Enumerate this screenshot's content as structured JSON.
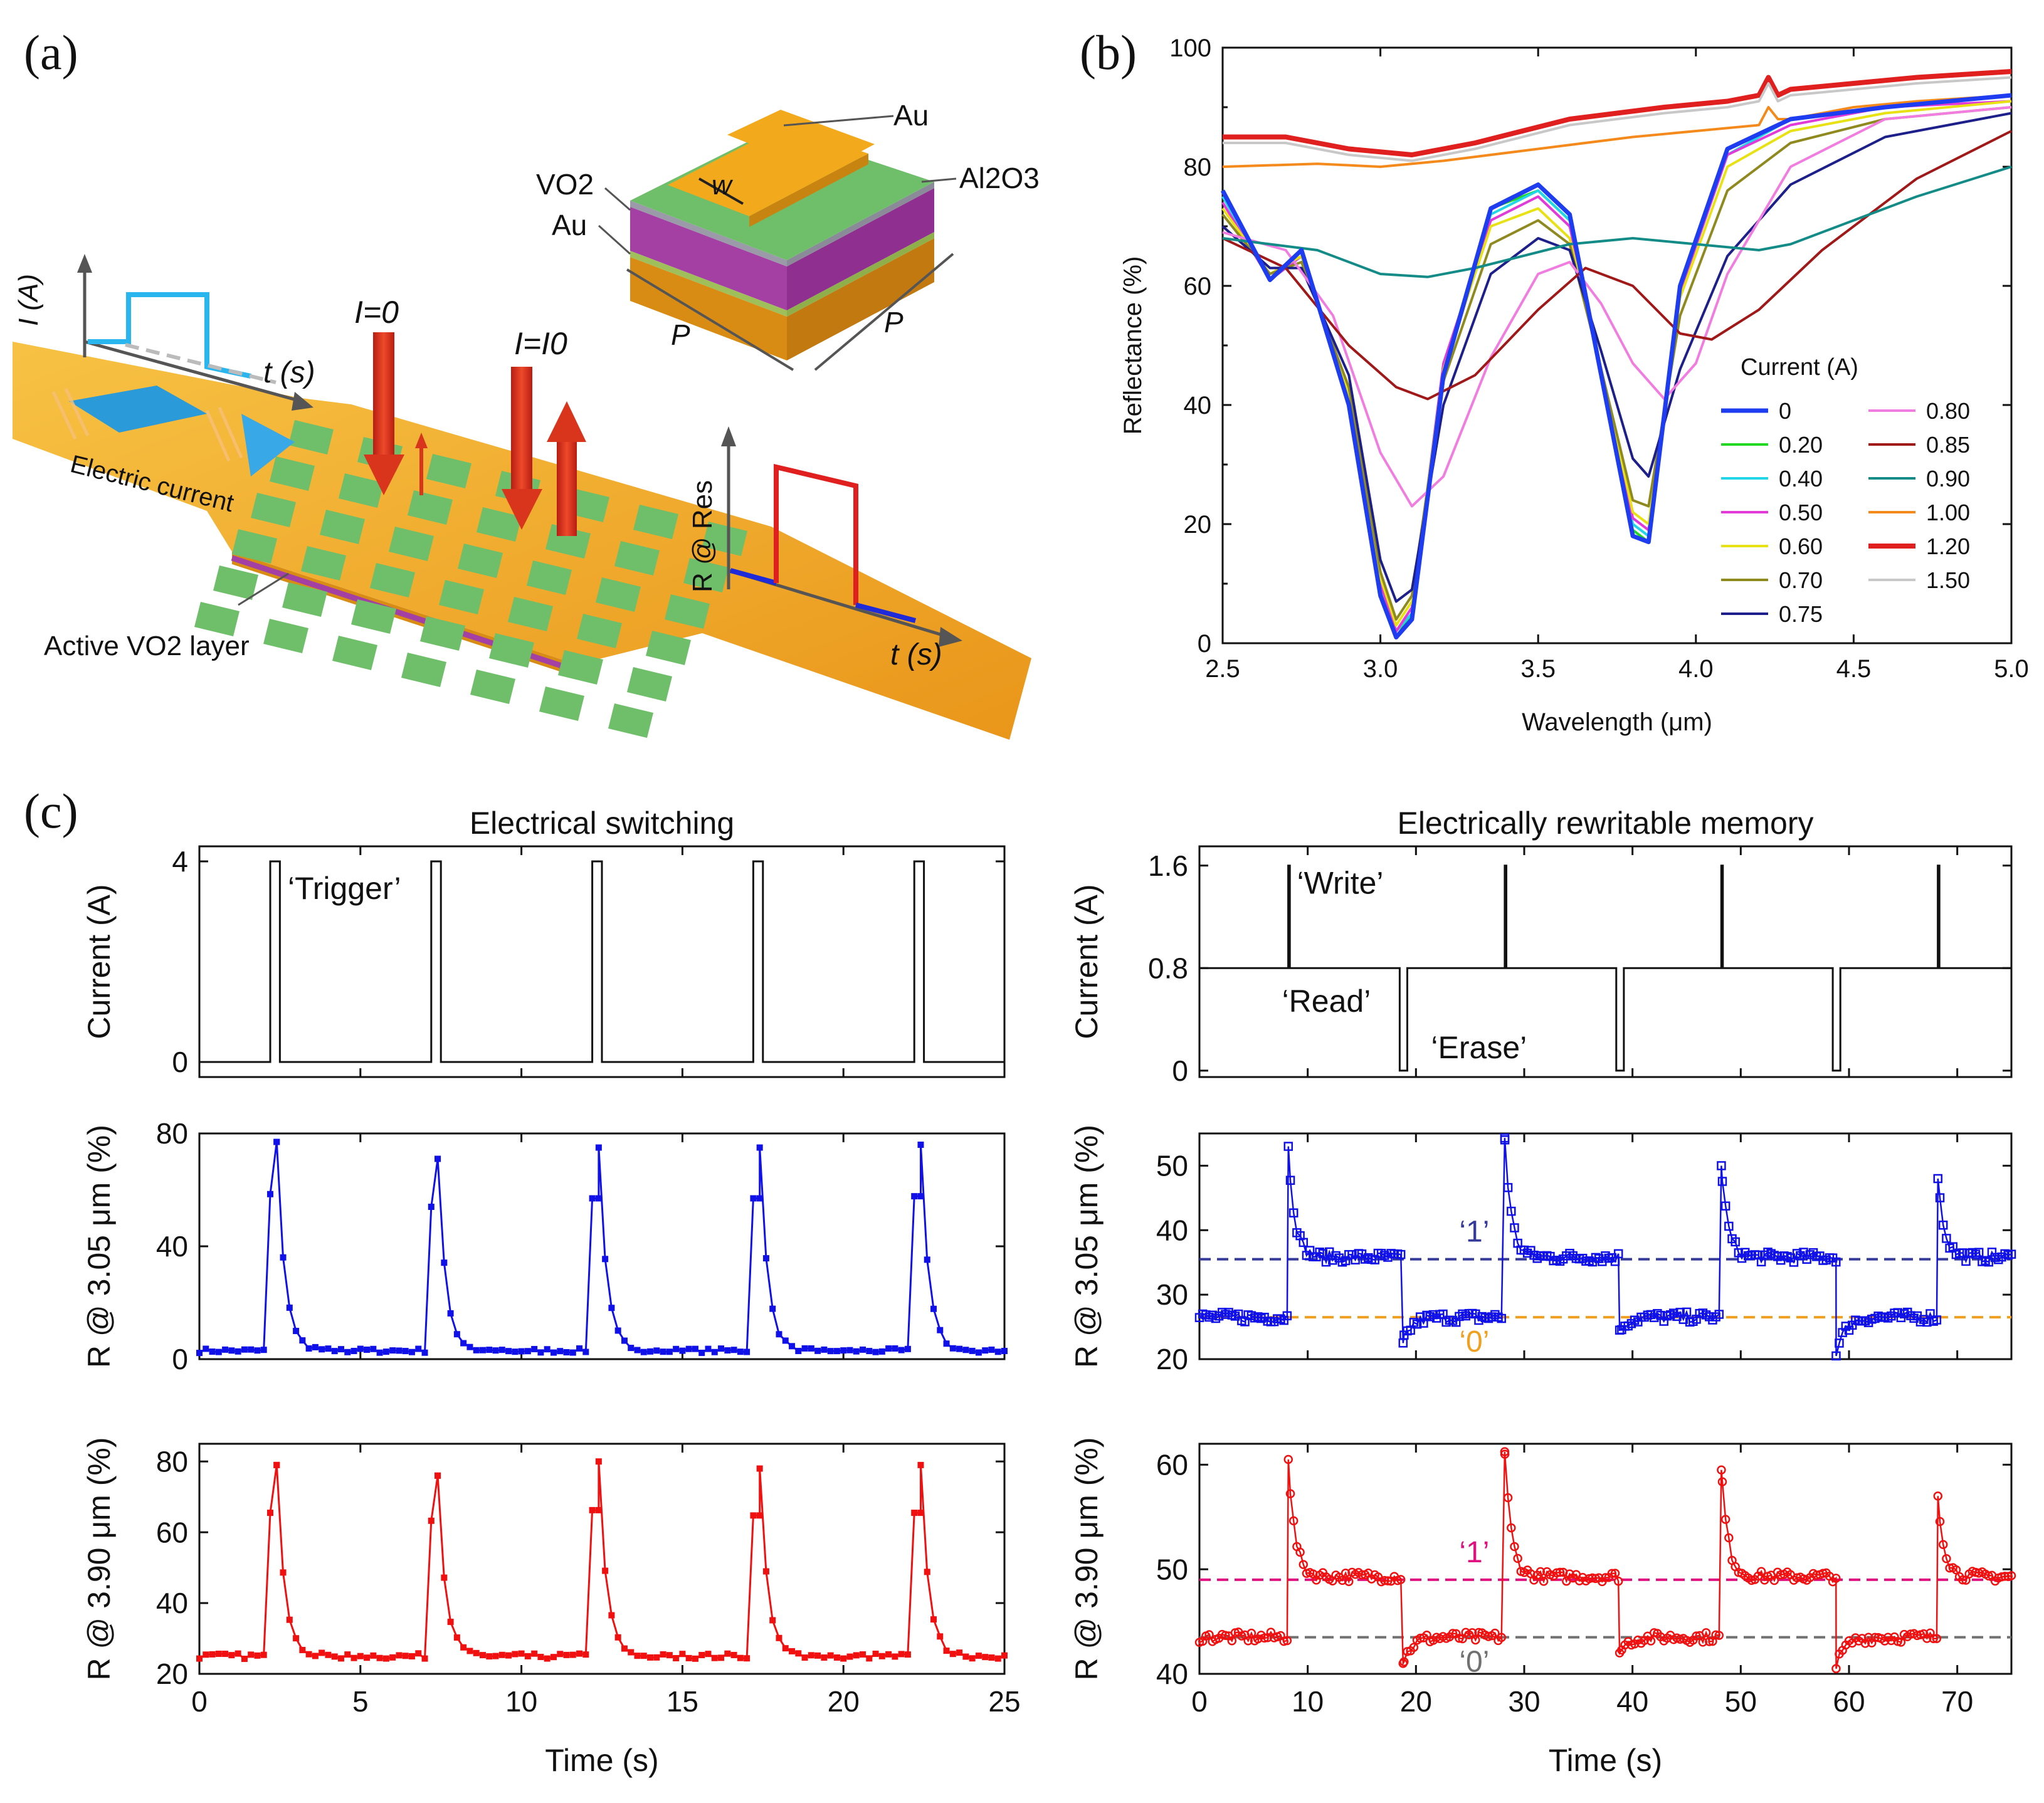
{
  "panel_labels": {
    "a": "(a)",
    "b": "(b)",
    "c": "(c)"
  },
  "schematic": {
    "axis_I": "I (A)",
    "axis_t1": "t (s)",
    "axis_R": "R @ Res",
    "axis_t2": "t (s)",
    "electric_current": "Electric current",
    "active_layer": "Active VO2 layer",
    "i_zero": "I=0",
    "i_i0": "I=I0",
    "unit_cell": {
      "au_top": "Au",
      "al2o3": "Al2O3",
      "vo2": "VO2",
      "au_bottom": "Au",
      "w": "w",
      "p1": "P",
      "p2": "P"
    },
    "colors": {
      "gold": "#f2a91c",
      "green": "#6fbf6a",
      "purple": "#a43fa3",
      "red": "#d8351c",
      "blue": "#2a9bd8"
    }
  },
  "chart_data": [
    {
      "id": "b",
      "type": "line",
      "title": "",
      "xlabel": "Wavelength (μm)",
      "ylabel": "Reflectance (%)",
      "xlim": [
        2.5,
        5.0
      ],
      "ylim": [
        0,
        100
      ],
      "xticks": [
        "2.5",
        "3.0",
        "3.5",
        "4.0",
        "4.5",
        "5.0"
      ],
      "yticks": [
        "0",
        "20",
        "40",
        "60",
        "80",
        "100"
      ],
      "legend_title": "Current (A)",
      "legend_placement": "bottom-right",
      "series": [
        {
          "name": "0",
          "color": "#1f3df0",
          "width": 7,
          "x": [
            2.5,
            2.65,
            2.75,
            2.9,
            3.0,
            3.05,
            3.1,
            3.2,
            3.35,
            3.5,
            3.6,
            3.7,
            3.8,
            3.85,
            3.95,
            4.1,
            4.3,
            4.6,
            5.0
          ],
          "y": [
            76,
            61,
            66,
            40,
            8,
            1,
            4,
            45,
            73,
            77,
            72,
            45,
            18,
            17,
            60,
            83,
            88,
            90,
            92
          ]
        },
        {
          "name": "0.20",
          "color": "#22d822",
          "width": 4,
          "x": [
            2.5,
            2.65,
            2.75,
            2.9,
            3.0,
            3.05,
            3.1,
            3.2,
            3.35,
            3.5,
            3.6,
            3.7,
            3.8,
            3.85,
            3.95,
            4.1,
            4.3,
            4.6,
            5.0
          ],
          "y": [
            76,
            61,
            66,
            41,
            9,
            1,
            5,
            46,
            73,
            76,
            71,
            45,
            19,
            17,
            60,
            83,
            88,
            90,
            92
          ]
        },
        {
          "name": "0.40",
          "color": "#21d6e8",
          "width": 4,
          "x": [
            2.5,
            2.65,
            2.75,
            2.9,
            3.0,
            3.05,
            3.1,
            3.2,
            3.35,
            3.5,
            3.6,
            3.7,
            3.8,
            3.85,
            3.95,
            4.1,
            4.3,
            4.6,
            5.0
          ],
          "y": [
            75,
            61,
            65,
            41,
            9,
            2,
            5,
            46,
            72,
            76,
            71,
            46,
            20,
            18,
            60,
            82,
            88,
            90,
            92
          ]
        },
        {
          "name": "0.50",
          "color": "#e23ad9",
          "width": 4,
          "x": [
            2.5,
            2.65,
            2.75,
            2.9,
            3.0,
            3.05,
            3.1,
            3.2,
            3.35,
            3.5,
            3.6,
            3.7,
            3.8,
            3.85,
            3.95,
            4.1,
            4.3,
            4.6,
            5.0
          ],
          "y": [
            74,
            61,
            65,
            42,
            10,
            2,
            6,
            47,
            71,
            75,
            70,
            46,
            21,
            19,
            59,
            82,
            87,
            90,
            91
          ]
        },
        {
          "name": "0.60",
          "color": "#e8e215",
          "width": 4,
          "x": [
            2.5,
            2.65,
            2.75,
            2.9,
            3.0,
            3.05,
            3.1,
            3.2,
            3.35,
            3.5,
            3.6,
            3.7,
            3.8,
            3.85,
            3.95,
            4.1,
            4.3,
            4.6,
            5.0
          ],
          "y": [
            73,
            62,
            65,
            42,
            11,
            3,
            7,
            46,
            70,
            73,
            68,
            46,
            22,
            20,
            58,
            80,
            86,
            89,
            91
          ]
        },
        {
          "name": "0.70",
          "color": "#8f8a1f",
          "width": 4,
          "x": [
            2.5,
            2.65,
            2.75,
            2.9,
            3.0,
            3.05,
            3.1,
            3.2,
            3.35,
            3.5,
            3.6,
            3.7,
            3.8,
            3.85,
            3.95,
            4.1,
            4.3,
            4.6,
            5.0
          ],
          "y": [
            72,
            62,
            64,
            43,
            12,
            4,
            8,
            44,
            67,
            71,
            67,
            46,
            24,
            23,
            55,
            76,
            84,
            88,
            90
          ]
        },
        {
          "name": "0.75",
          "color": "#1d1f8a",
          "width": 4,
          "x": [
            2.5,
            2.65,
            2.75,
            2.9,
            3.0,
            3.05,
            3.1,
            3.2,
            3.35,
            3.5,
            3.6,
            3.7,
            3.8,
            3.85,
            3.95,
            4.1,
            4.3,
            4.6,
            5.0
          ],
          "y": [
            70,
            63,
            63,
            45,
            14,
            7,
            9,
            40,
            62,
            68,
            66,
            49,
            31,
            28,
            46,
            65,
            77,
            85,
            89
          ]
        },
        {
          "name": "0.80",
          "color": "#f27de0",
          "width": 4,
          "x": [
            2.5,
            2.7,
            2.85,
            3.0,
            3.1,
            3.2,
            3.35,
            3.5,
            3.6,
            3.7,
            3.8,
            3.9,
            4.0,
            4.1,
            4.3,
            4.6,
            5.0
          ],
          "y": [
            69,
            66,
            55,
            32,
            23,
            28,
            48,
            62,
            64,
            57,
            47,
            41,
            47,
            62,
            80,
            88,
            90
          ]
        },
        {
          "name": "0.85",
          "color": "#a01818",
          "width": 4,
          "x": [
            2.5,
            2.7,
            2.9,
            3.05,
            3.15,
            3.3,
            3.5,
            3.65,
            3.8,
            3.95,
            4.05,
            4.2,
            4.4,
            4.7,
            5.0
          ],
          "y": [
            68,
            63,
            50,
            43,
            41,
            45,
            56,
            63,
            60,
            52,
            51,
            56,
            66,
            78,
            86
          ]
        },
        {
          "name": "0.90",
          "color": "#138b86",
          "width": 4,
          "x": [
            2.5,
            2.8,
            3.0,
            3.15,
            3.3,
            3.6,
            3.8,
            4.0,
            4.2,
            4.3,
            4.5,
            4.7,
            5.0
          ],
          "y": [
            68,
            66,
            62,
            61.5,
            63,
            67,
            68,
            67,
            66,
            67,
            71,
            75,
            80
          ]
        },
        {
          "name": "1.00",
          "color": "#f58a1c",
          "width": 4,
          "x": [
            2.5,
            2.8,
            3.0,
            3.2,
            3.5,
            3.8,
            4.0,
            4.2,
            4.23,
            4.26,
            4.3,
            4.5,
            4.7,
            5.0
          ],
          "y": [
            80,
            80.5,
            80,
            81,
            83,
            85,
            86,
            87,
            90,
            88,
            88,
            90,
            91,
            92
          ]
        },
        {
          "name": "1.20",
          "color": "#e01f1f",
          "width": 8,
          "x": [
            2.5,
            2.7,
            2.9,
            3.1,
            3.3,
            3.6,
            3.9,
            4.1,
            4.2,
            4.23,
            4.26,
            4.3,
            4.5,
            4.7,
            5.0
          ],
          "y": [
            85,
            85,
            83,
            82,
            84,
            88,
            90,
            91,
            92,
            95,
            92,
            93,
            94,
            95,
            96
          ]
        },
        {
          "name": "1.50",
          "color": "#c8c8c8",
          "width": 4,
          "x": [
            2.5,
            2.7,
            2.9,
            3.1,
            3.3,
            3.6,
            3.9,
            4.1,
            4.2,
            4.23,
            4.26,
            4.3,
            4.5,
            4.7,
            5.0
          ],
          "y": [
            84,
            84,
            82,
            81,
            83,
            87,
            89,
            90,
            91,
            94,
            91,
            92,
            93,
            94,
            95
          ]
        }
      ]
    },
    {
      "id": "c_switch_current",
      "type": "line",
      "title": "Electrical switching",
      "xlabel": "",
      "ylabel": "Current (A)",
      "xlim": [
        0,
        25
      ],
      "ylim": [
        -0.3,
        4.3
      ],
      "yticks": [
        "0",
        "4"
      ],
      "annotation": "‘Trigger’",
      "pulse_on": [
        2.2,
        7.2,
        12.2,
        17.2,
        22.2
      ],
      "pulse_width": 0.3,
      "pulse_level": 4
    },
    {
      "id": "c_switch_r305",
      "type": "line",
      "xlabel": "",
      "ylabel": "R @ 3.05 μm (%)",
      "xlim": [
        0,
        25
      ],
      "ylim": [
        0,
        80
      ],
      "yticks": [
        "0",
        "40",
        "80"
      ],
      "color": "#1010e8",
      "baseline": 3,
      "peak_times": [
        2.4,
        7.4,
        12.4,
        17.4,
        22.4
      ],
      "peaks": [
        77,
        71,
        75,
        75,
        76
      ]
    },
    {
      "id": "c_switch_r390",
      "type": "line",
      "xlabel": "Time (s)",
      "ylabel": "R @ 3.90 μm (%)",
      "xlim": [
        0,
        25
      ],
      "ylim": [
        20,
        85
      ],
      "xticks": [
        "0",
        "5",
        "10",
        "15",
        "20",
        "25"
      ],
      "yticks": [
        "20",
        "40",
        "60",
        "80"
      ],
      "color": "#f01010",
      "baseline": 25,
      "peak_times": [
        2.4,
        7.4,
        12.4,
        17.4,
        22.4
      ],
      "peaks": [
        79,
        76,
        80,
        78,
        79
      ]
    },
    {
      "id": "c_mem_current",
      "type": "line",
      "title": "Electrically rewritable memory",
      "xlabel": "",
      "ylabel": "Current (A)",
      "xlim": [
        0,
        75
      ],
      "ylim": [
        -0.05,
        1.75
      ],
      "yticks": [
        "0",
        "0.8",
        "1.6"
      ],
      "read_level": 0.8,
      "write_level": 1.6,
      "write_times": [
        8.2,
        28.2,
        48.2,
        68.2
      ],
      "erase_times": [
        18.5,
        38.5,
        58.5
      ],
      "erase_width": 0.7,
      "annotations": [
        "‘Write’",
        "‘Read’",
        "‘Erase’"
      ]
    },
    {
      "id": "c_mem_r305",
      "type": "scatter",
      "xlabel": "",
      "ylabel": "R @ 3.05 μm (%)",
      "xlim": [
        0,
        75
      ],
      "ylim": [
        20,
        55
      ],
      "yticks": [
        "20",
        "30",
        "40",
        "50"
      ],
      "color": "#1010e8",
      "state_1": 35.5,
      "state_0": 26.5,
      "state_1_label": "‘1’",
      "state_0_label": "‘0’",
      "state_1_color": "#353a9a",
      "state_0_color": "#f0a020",
      "write_times": [
        8.2,
        28.2,
        48.2,
        68.2
      ],
      "write_peaks": [
        53,
        54,
        50,
        48
      ],
      "erase_times": [
        18.8,
        38.8,
        58.8
      ],
      "erase_dips": [
        22.5,
        24.5,
        20.5
      ]
    },
    {
      "id": "c_mem_r390",
      "type": "scatter",
      "xlabel": "Time (s)",
      "ylabel": "R @ 3.90 μm (%)",
      "xlim": [
        0,
        75
      ],
      "ylim": [
        40,
        62
      ],
      "xticks": [
        "0",
        "10",
        "20",
        "30",
        "40",
        "50",
        "60",
        "70"
      ],
      "yticks": [
        "40",
        "50",
        "60"
      ],
      "color": "#f01010",
      "state_1": 49,
      "state_0": 43.5,
      "state_1_label": "‘1’",
      "state_0_label": "‘0’",
      "state_1_color": "#e01080",
      "state_0_color": "#707070",
      "write_times": [
        8.2,
        28.2,
        48.2,
        68.2
      ],
      "write_peaks": [
        60.5,
        61,
        59.5,
        57
      ],
      "erase_times": [
        18.8,
        38.8,
        58.8
      ],
      "erase_dips": [
        41,
        42,
        40.5
      ]
    }
  ]
}
